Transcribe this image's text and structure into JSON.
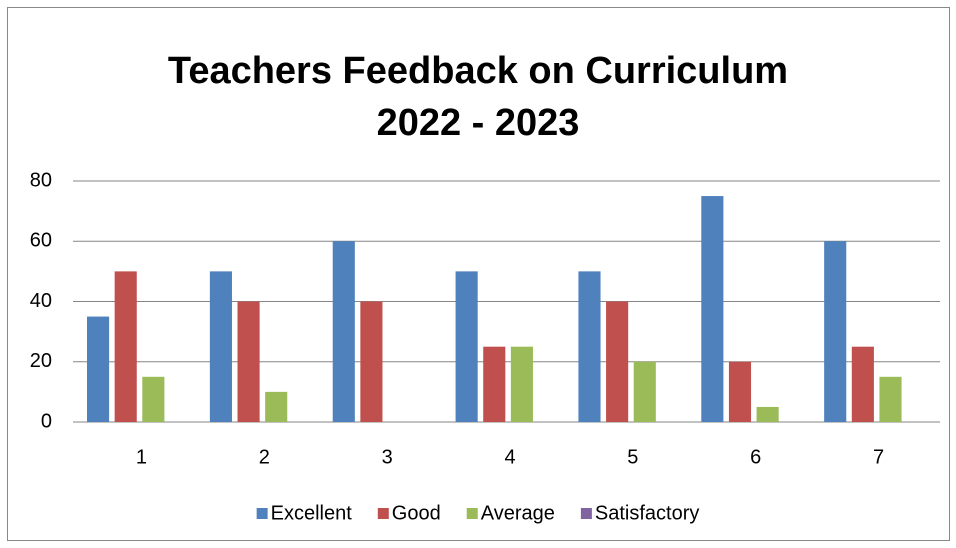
{
  "chart_data": {
    "type": "bar",
    "title": "Teachers Feedback on Curriculum",
    "subtitle": "2022 - 2023",
    "categories": [
      "1",
      "2",
      "3",
      "4",
      "5",
      "6",
      "7"
    ],
    "series": [
      {
        "name": "Excellent",
        "color": "#4f81bd",
        "values": [
          35,
          50,
          60,
          50,
          50,
          75,
          60
        ]
      },
      {
        "name": "Good",
        "color": "#c0504d",
        "values": [
          50,
          40,
          40,
          25,
          40,
          20,
          25
        ]
      },
      {
        "name": "Average",
        "color": "#9bbb59",
        "values": [
          15,
          10,
          0,
          25,
          20,
          5,
          15
        ]
      },
      {
        "name": "Satisfactory",
        "color": "#8064a2",
        "values": [
          0,
          0,
          0,
          0,
          0,
          0,
          0
        ]
      }
    ],
    "ylim": [
      0,
      80
    ],
    "yticks": [
      0,
      20,
      40,
      60,
      80
    ],
    "grid": true,
    "legend": "bottom"
  }
}
